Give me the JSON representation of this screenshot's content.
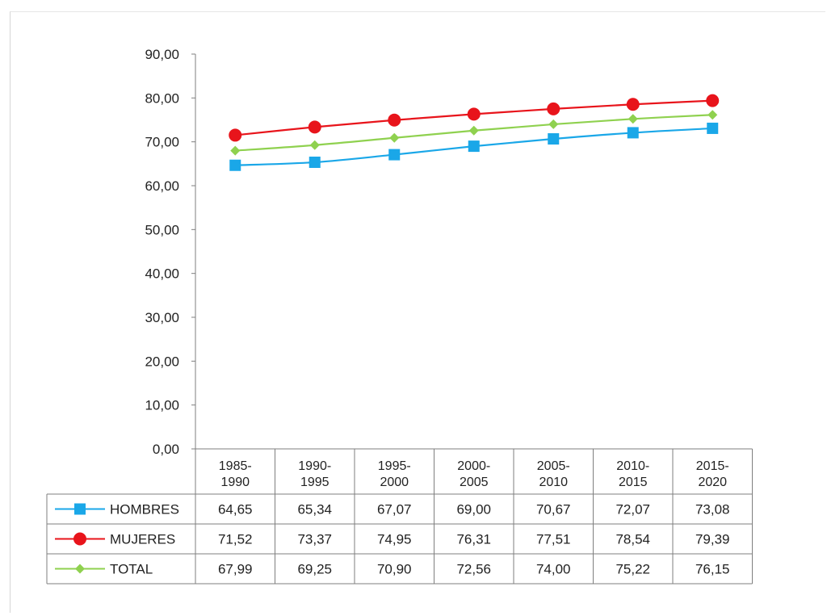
{
  "chart_data": {
    "type": "line",
    "title": "",
    "xlabel": "",
    "ylabel": "",
    "ylim": [
      0,
      90
    ],
    "yticks": [
      "0,00",
      "10,00",
      "20,00",
      "30,00",
      "40,00",
      "50,00",
      "60,00",
      "70,00",
      "80,00",
      "90,00"
    ],
    "grid": false,
    "legend": "data-table-left",
    "categories": [
      [
        "1985-",
        "1990"
      ],
      [
        "1990-",
        "1995"
      ],
      [
        "1995-",
        "2000"
      ],
      [
        "2000-",
        "2005"
      ],
      [
        "2005-",
        "2010"
      ],
      [
        "2010-",
        "2015"
      ],
      [
        "2015-",
        "2020"
      ]
    ],
    "series": [
      {
        "name": "HOMBRES",
        "color": "#1aa7e8",
        "marker": "square",
        "values": [
          64.65,
          65.34,
          67.07,
          69.0,
          70.67,
          72.07,
          73.08
        ],
        "labels": [
          "64,65",
          "65,34",
          "67,07",
          "69,00",
          "70,67",
          "72,07",
          "73,08"
        ]
      },
      {
        "name": "MUJERES",
        "color": "#e8141b",
        "marker": "diamond",
        "values": [
          71.52,
          73.37,
          74.95,
          76.31,
          77.51,
          78.54,
          79.39
        ],
        "labels": [
          "71,52",
          "73,37",
          "74,95",
          "76,31",
          "77,51",
          "78,54",
          "79,39"
        ]
      },
      {
        "name": "TOTAL",
        "color": "#8fd14f",
        "marker": "diamond-small",
        "values": [
          67.99,
          69.25,
          70.9,
          72.56,
          74.0,
          75.22,
          76.15
        ],
        "labels": [
          "67,99",
          "69,25",
          "70,90",
          "72,56",
          "74,00",
          "75,22",
          "76,15"
        ]
      }
    ]
  }
}
